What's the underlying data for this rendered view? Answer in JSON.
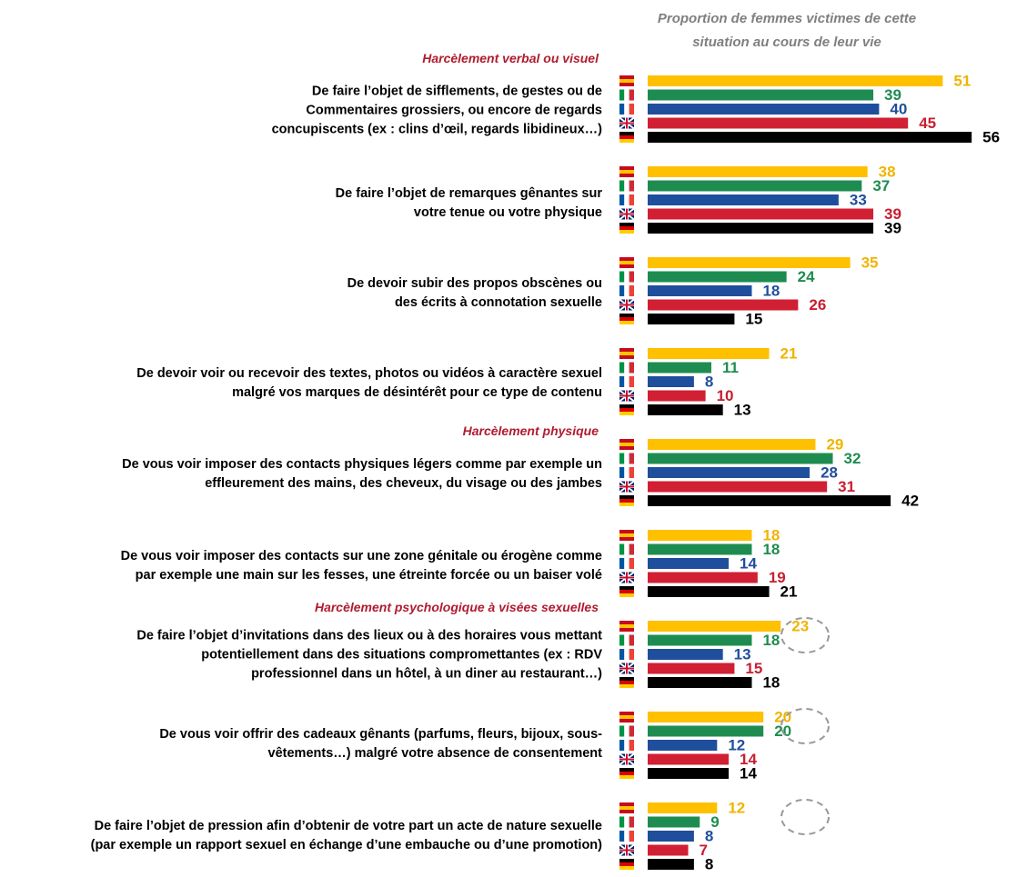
{
  "chart_data": {
    "type": "bar",
    "title_lines": [
      "Proportion de femmes victimes de cette",
      "situation au cours de leur vie"
    ],
    "sections": [
      {
        "label": "Harcèlement verbal ou visuel",
        "before": 0
      },
      {
        "label": "Harcèlement physique",
        "before": 4
      },
      {
        "label": "Harcèlement psychologique à visées sexuelles",
        "before": 6
      }
    ],
    "categories": [
      "De faire l’objet de sifflements, de gestes ou de Commentaires grossiers, ou encore de regards concupiscents  (ex : clins d’œil, regards libidineux…)",
      "De faire l’objet de remarques gênantes sur votre tenue ou votre physique",
      "De devoir subir des propos obscènes ou des écrits à connotation sexuelle",
      "De devoir voir ou recevoir des textes, photos ou vidéos à caractère sexuel malgré vos marques de désintérêt pour ce type de contenu",
      "De vous voir imposer des contacts physiques légers comme par exemple un effleurement des mains, des cheveux, du visage ou des jambes",
      "De vous voir imposer des contacts sur une zone génitale ou érogène comme par exemple une main sur les fesses, une étreinte forcée ou un baiser volé",
      "De faire l’objet d’invitations dans des lieux ou à des horaires vous mettant potentiellement dans des situations compromettantes (ex : RDV professionnel dans un hôtel, à un diner au restaurant…)",
      "De vous voir offrir des cadeaux gênants (parfums, fleurs, bijoux, sous-vêtements…) malgré votre absence de consentement",
      "De faire l’objet de pression afin d’obtenir de votre part un acte de nature sexuelle (par exemple un rapport sexuel  en échange d’une embauche ou d’une promotion)"
    ],
    "series": [
      {
        "color": "#ffc000",
        "label_color": "#f0b400",
        "values": [
          51,
          38,
          35,
          21,
          29,
          18,
          23,
          20,
          12
        ]
      },
      {
        "color": "#1e8c50",
        "label_color": "#1e8c50",
        "values": [
          39,
          37,
          24,
          11,
          32,
          18,
          18,
          20,
          9
        ]
      },
      {
        "color": "#1f4e9c",
        "label_color": "#1f4e9c",
        "values": [
          40,
          33,
          18,
          8,
          28,
          14,
          13,
          12,
          8
        ]
      },
      {
        "color": "#d11f33",
        "label_color": "#c81e30",
        "values": [
          45,
          39,
          26,
          10,
          31,
          19,
          15,
          14,
          7
        ]
      },
      {
        "color": "#000000",
        "label_color": "#000000",
        "values": [
          56,
          39,
          15,
          13,
          42,
          21,
          18,
          14,
          8
        ]
      }
    ]
  }
}
